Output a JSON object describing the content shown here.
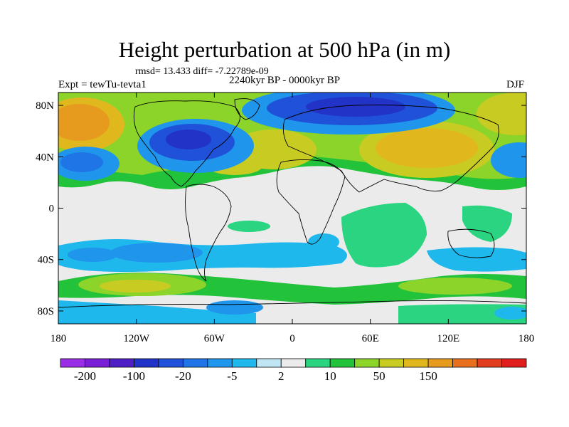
{
  "title": "Height perturbation at 500 hPa (in m)",
  "stats": "rmsd= 13.433 diff= -7.22789e-09",
  "experiment": "Expt = tewTu-tevta1",
  "period": "2240kyr BP - 0000kyr BP",
  "season": "DJF",
  "map": {
    "lon_range": [
      -180,
      180
    ],
    "lat_range": [
      -90,
      90
    ],
    "lat_ticks": [
      {
        "value": 80,
        "label": "80N"
      },
      {
        "value": 40,
        "label": "40N"
      },
      {
        "value": 0,
        "label": "0"
      },
      {
        "value": -40,
        "label": "40S"
      },
      {
        "value": -80,
        "label": "80S"
      }
    ],
    "lon_ticks": [
      {
        "value": -180,
        "label": "180"
      },
      {
        "value": -120,
        "label": "120W"
      },
      {
        "value": -60,
        "label": "60W"
      },
      {
        "value": 0,
        "label": "0"
      },
      {
        "value": 60,
        "label": "60E"
      },
      {
        "value": 120,
        "label": "120E"
      },
      {
        "value": 180,
        "label": "180"
      }
    ]
  },
  "colorbar": {
    "colors": [
      "#9a2ee6",
      "#7a1fd6",
      "#4f1fc4",
      "#2233c8",
      "#1f52d9",
      "#1f74e6",
      "#1f96ec",
      "#1fb8ec",
      "#bfe6f2",
      "#ebebeb",
      "#2ad480",
      "#22c23a",
      "#8cd42a",
      "#c8cc22",
      "#e0b81e",
      "#e69a1e",
      "#e6701e",
      "#e03c1e",
      "#e01e1e"
    ],
    "labels": [
      {
        "index": 1,
        "text": "-200"
      },
      {
        "index": 3,
        "text": "-100"
      },
      {
        "index": 5,
        "text": "-20"
      },
      {
        "index": 7,
        "text": "-5"
      },
      {
        "index": 9,
        "text": "2"
      },
      {
        "index": 11,
        "text": "10"
      },
      {
        "index": 13,
        "text": "50"
      },
      {
        "index": 15,
        "text": "150"
      }
    ]
  }
}
